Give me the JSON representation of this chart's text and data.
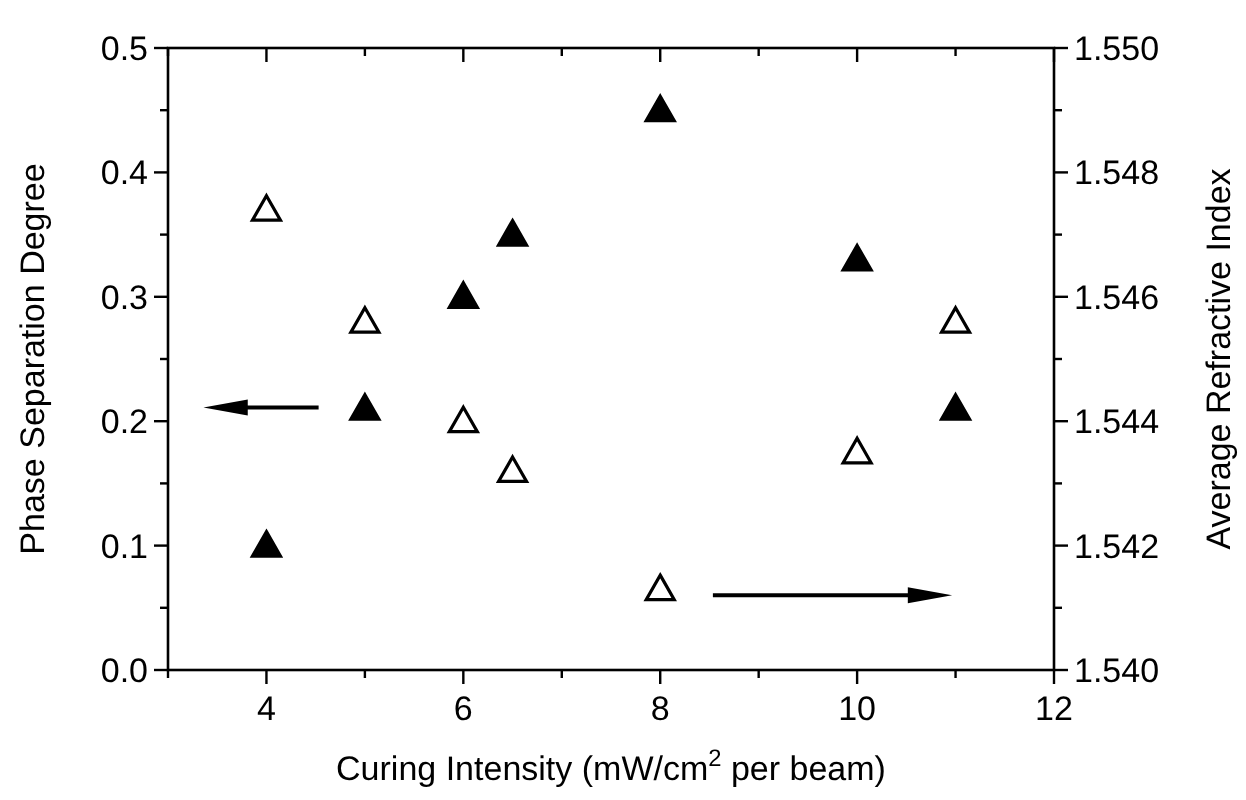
{
  "chart_data": {
    "type": "scatter",
    "xlabel": "Curing Intensity (mW/cm$^{2}$ per beam)",
    "ylabel": "Phase Separation Degree",
    "y2label": "Average Refractive Index",
    "marker": "triangle",
    "series": [
      {
        "color": "#000000",
        "x": [
          4,
          5,
          6,
          6.5,
          8,
          10,
          11
        ],
        "values": [
          0.1,
          0.21,
          0.3,
          0.35,
          0.45,
          0.33,
          0.21
        ]
      },
      {
        "color": "#ffffff",
        "axis": "y2",
        "x": [
          4,
          5,
          6,
          6.5,
          8,
          10,
          11
        ],
        "values": [
          1.5474,
          1.5456,
          1.544,
          1.5432,
          1.5413,
          1.5435,
          1.5456
        ]
      }
    ],
    "xlim": [
      3,
      12
    ],
    "xticks": [
      {
        "value": 3,
        "label": null
      },
      4,
      {
        "value": 5,
        "label": null
      },
      6,
      {
        "value": 7,
        "label": null
      },
      8,
      {
        "value": 9,
        "label": null
      },
      10,
      {
        "value": 11,
        "label": null
      },
      12
    ],
    "ylim": [
      0,
      0.5
    ],
    "yticks": [
      {
        "value": 0,
        "label": "0.0"
      },
      {
        "value": 0.05,
        "label": null
      },
      0.1,
      {
        "value": 0.15,
        "label": null
      },
      0.2,
      {
        "value": 0.25,
        "label": null
      },
      0.3,
      {
        "value": 0.35,
        "label": null
      },
      0.4,
      {
        "value": 0.45,
        "label": null
      },
      0.5
    ],
    "y2lim": [
      1.54,
      1.55
    ],
    "y2ticks": [
      {
        "value": 1.54,
        "label": "1.540"
      },
      {
        "value": 1.541,
        "label": null
      },
      {
        "value": 1.542,
        "label": "1.542"
      },
      {
        "value": 1.543,
        "label": null
      },
      {
        "value": 1.544,
        "label": "1.544"
      },
      {
        "value": 1.545,
        "label": null
      },
      {
        "value": 1.546,
        "label": "1.546"
      },
      {
        "value": 1.547,
        "label": null
      },
      {
        "value": 1.548,
        "label": "1.548"
      },
      {
        "value": 1.549,
        "label": null
      },
      {
        "value": 1.55,
        "label": "1.550"
      }
    ],
    "tick_labels": "xy"
  }
}
